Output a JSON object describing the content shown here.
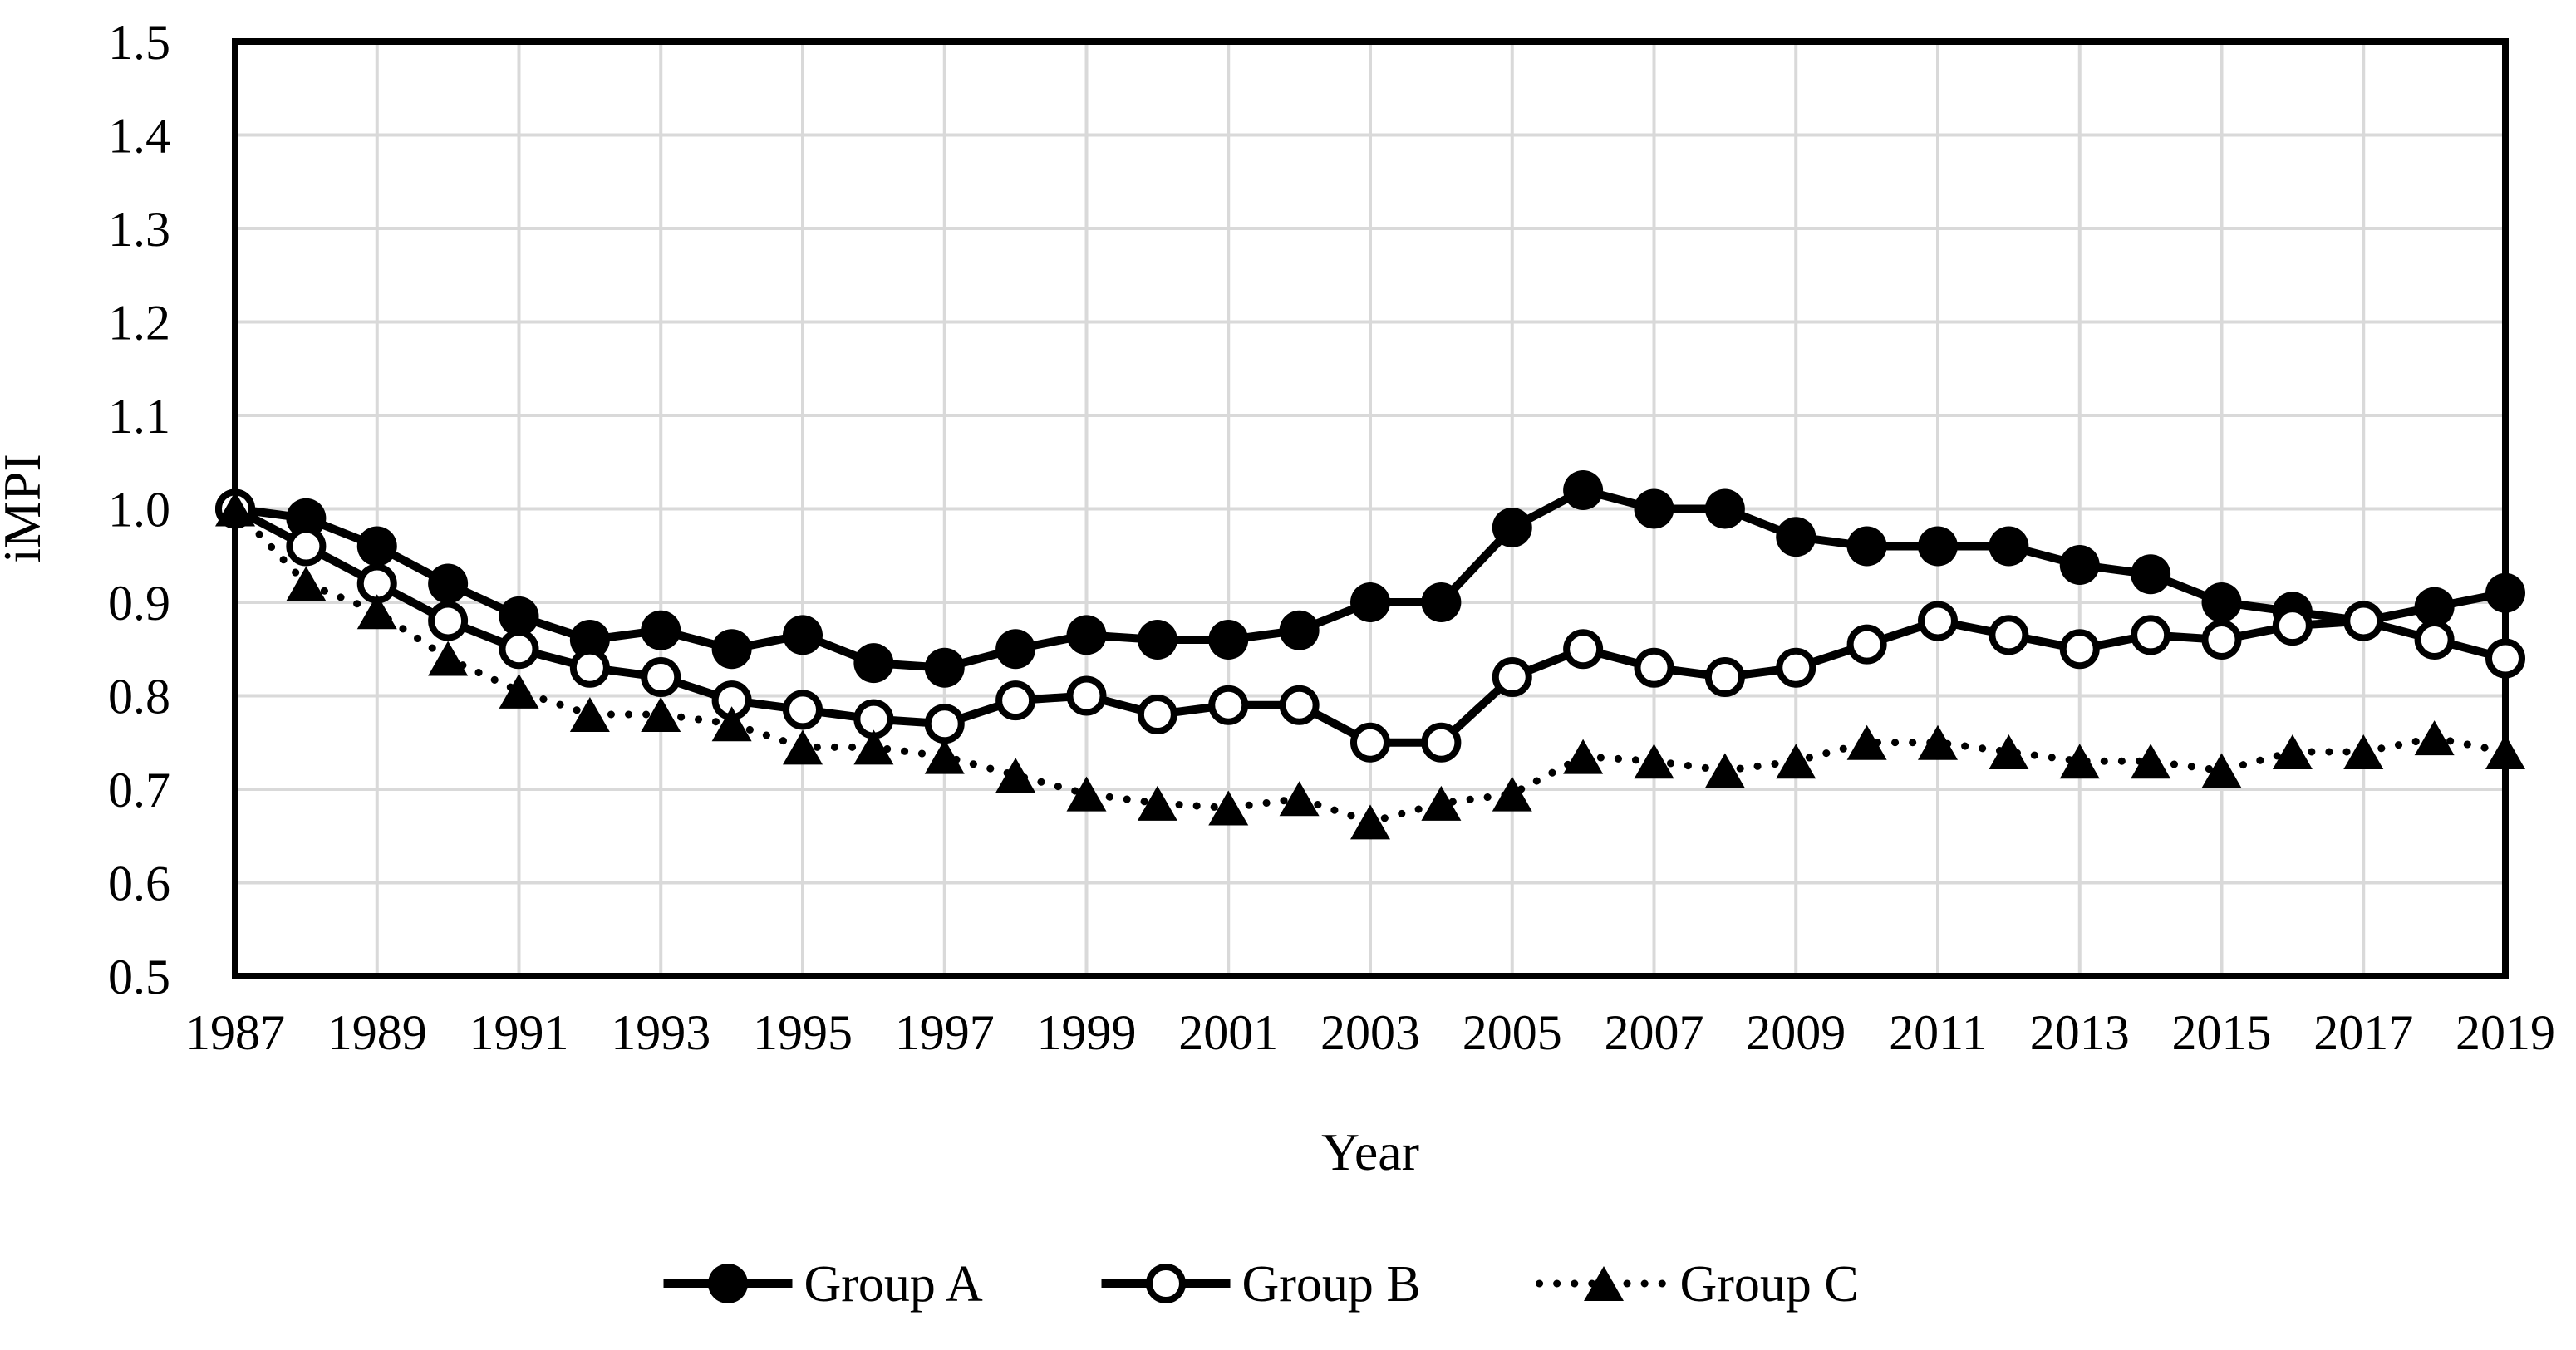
{
  "figure": {
    "background_color": "#ffffff",
    "line_color": "#000000",
    "grid_color": "#d9d9d9",
    "border_color": "#000000"
  },
  "chart_data": {
    "type": "line",
    "title": "",
    "xlabel": "Year",
    "ylabel": "iMPI",
    "ylim": [
      0.5,
      1.5
    ],
    "grid": true,
    "legend_position": "bottom",
    "x": [
      1987,
      1988,
      1989,
      1990,
      1991,
      1992,
      1993,
      1994,
      1995,
      1996,
      1997,
      1998,
      1999,
      2000,
      2001,
      2002,
      2003,
      2004,
      2005,
      2006,
      2007,
      2008,
      2009,
      2010,
      2011,
      2012,
      2013,
      2014,
      2015,
      2016,
      2017,
      2018,
      2019
    ],
    "xtick_labels": [
      "1987",
      "1989",
      "1991",
      "1993",
      "1995",
      "1997",
      "1999",
      "2001",
      "2003",
      "2005",
      "2007",
      "2009",
      "2011",
      "2013",
      "2015",
      "2017",
      "2019"
    ],
    "ytick_labels": [
      "0.5",
      "0.6",
      "0.7",
      "0.8",
      "0.9",
      "1.0",
      "1.1",
      "1.2",
      "1.3",
      "1.4",
      "1.5"
    ],
    "series": [
      {
        "name": "Group A",
        "marker": "filled-circle",
        "line_style": "solid",
        "color": "#000000",
        "values": [
          1.0,
          0.99,
          0.96,
          0.92,
          0.885,
          0.86,
          0.87,
          0.85,
          0.865,
          0.835,
          0.83,
          0.85,
          0.865,
          0.86,
          0.86,
          0.87,
          0.9,
          0.9,
          0.98,
          1.02,
          1.0,
          1.0,
          0.97,
          0.96,
          0.96,
          0.96,
          0.94,
          0.93,
          0.9,
          0.89,
          0.88,
          0.895,
          0.91
        ]
      },
      {
        "name": "Group B",
        "marker": "open-circle",
        "line_style": "solid",
        "color": "#000000",
        "values": [
          1.0,
          0.96,
          0.92,
          0.88,
          0.85,
          0.83,
          0.82,
          0.795,
          0.785,
          0.775,
          0.77,
          0.795,
          0.8,
          0.78,
          0.79,
          0.79,
          0.75,
          0.75,
          0.82,
          0.85,
          0.83,
          0.82,
          0.83,
          0.855,
          0.88,
          0.865,
          0.85,
          0.865,
          0.86,
          0.875,
          0.88,
          0.86,
          0.84
        ]
      },
      {
        "name": "Group C",
        "marker": "filled-triangle",
        "line_style": "dotted",
        "color": "#000000",
        "values": [
          1.0,
          0.92,
          0.89,
          0.84,
          0.805,
          0.78,
          0.78,
          0.77,
          0.745,
          0.745,
          0.735,
          0.715,
          0.695,
          0.685,
          0.68,
          0.69,
          0.665,
          0.685,
          0.695,
          0.735,
          0.73,
          0.72,
          0.73,
          0.75,
          0.75,
          0.74,
          0.73,
          0.73,
          0.72,
          0.74,
          0.74,
          0.755,
          0.74
        ]
      }
    ]
  }
}
